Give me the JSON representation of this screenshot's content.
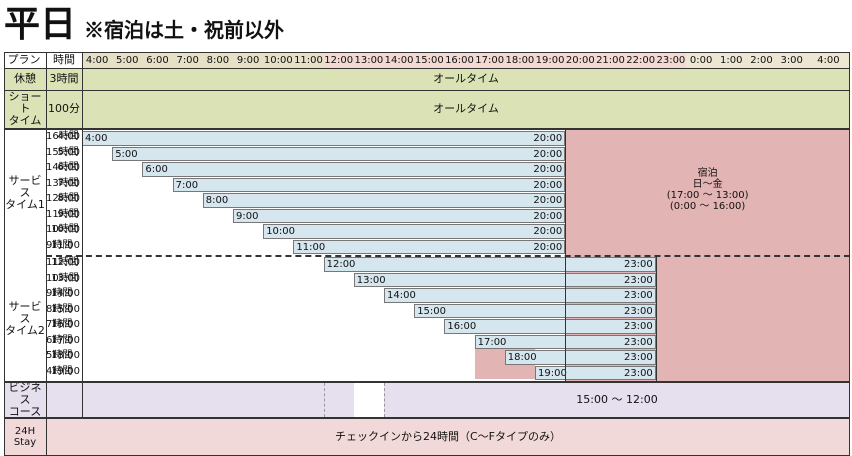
{
  "title": {
    "main": "平日",
    "note": "※宿泊は土・祝前以外"
  },
  "header": {
    "plan": "プラン",
    "time": "時間",
    "hours": [
      "4:00",
      "5:00",
      "6:00",
      "7:00",
      "8:00",
      "9:00",
      "10:00",
      "11:00",
      "12:00",
      "13:00",
      "14:00",
      "15:00",
      "16:00",
      "17:00",
      "18:00",
      "19:00",
      "20:00",
      "21:00",
      "22:00",
      "23:00",
      "0:00",
      "1:00",
      "2:00",
      "3:00",
      "4:00"
    ]
  },
  "kyukei": {
    "plan": "休憩",
    "time": "3時間",
    "text": "オールタイム"
  },
  "short": {
    "plan": "ショート\nタイム",
    "time": "100分",
    "text": "オールタイム"
  },
  "service1": {
    "plan": "サービス\nタイム1",
    "rows": [
      {
        "dur": "16時間",
        "start": "4:00",
        "end": "20:00"
      },
      {
        "dur": "15時間",
        "start": "5:00",
        "end": "20:00"
      },
      {
        "dur": "14時間",
        "start": "6:00",
        "end": "20:00"
      },
      {
        "dur": "13時間",
        "start": "7:00",
        "end": "20:00"
      },
      {
        "dur": "12時間",
        "start": "8:00",
        "end": "20:00"
      },
      {
        "dur": "11時間",
        "start": "9:00",
        "end": "20:00"
      },
      {
        "dur": "10時間",
        "start": "10:00",
        "end": "20:00"
      },
      {
        "dur": "9時間",
        "start": "11:00",
        "end": "20:00"
      }
    ]
  },
  "stay": {
    "l1": "宿泊",
    "l2": "日～金",
    "l3": "(17:00 ～ 13:00)",
    "l4": "(0:00 ～ 16:00)"
  },
  "service2": {
    "plan": "サービス\nタイム2",
    "rows": [
      {
        "dur": "11時間",
        "start": "12:00",
        "end": "23:00"
      },
      {
        "dur": "10時間",
        "start": "13:00",
        "end": "23:00"
      },
      {
        "dur": "9時間",
        "start": "14:00",
        "end": "23:00"
      },
      {
        "dur": "8時間",
        "start": "15:00",
        "end": "23:00"
      },
      {
        "dur": "7時間",
        "start": "16:00",
        "end": "23:00"
      },
      {
        "dur": "6時間",
        "start": "17:00",
        "end": "23:00"
      },
      {
        "dur": "5時間",
        "start": "18:00",
        "end": "23:00"
      },
      {
        "dur": "4時間",
        "start": "19:00",
        "end": "23:00"
      }
    ]
  },
  "business": {
    "plan": "ビジネス\nコース",
    "text": "15:00 ～ 12:00"
  },
  "stay24": {
    "plan": "24H Stay",
    "text": "チェックインから24時間（C～Fタイプのみ）"
  },
  "colors": {
    "header_day": "#e6e0c6",
    "header_evening": "#f3d9d2",
    "header_night": "#ece6d2",
    "plan_green": "#dbe3b6",
    "bar_blue": "#d5e6ee",
    "stay_pink": "#e2b4b4",
    "plan_purple": "#e5dfee",
    "plan_rose": "#f2d9d9"
  }
}
